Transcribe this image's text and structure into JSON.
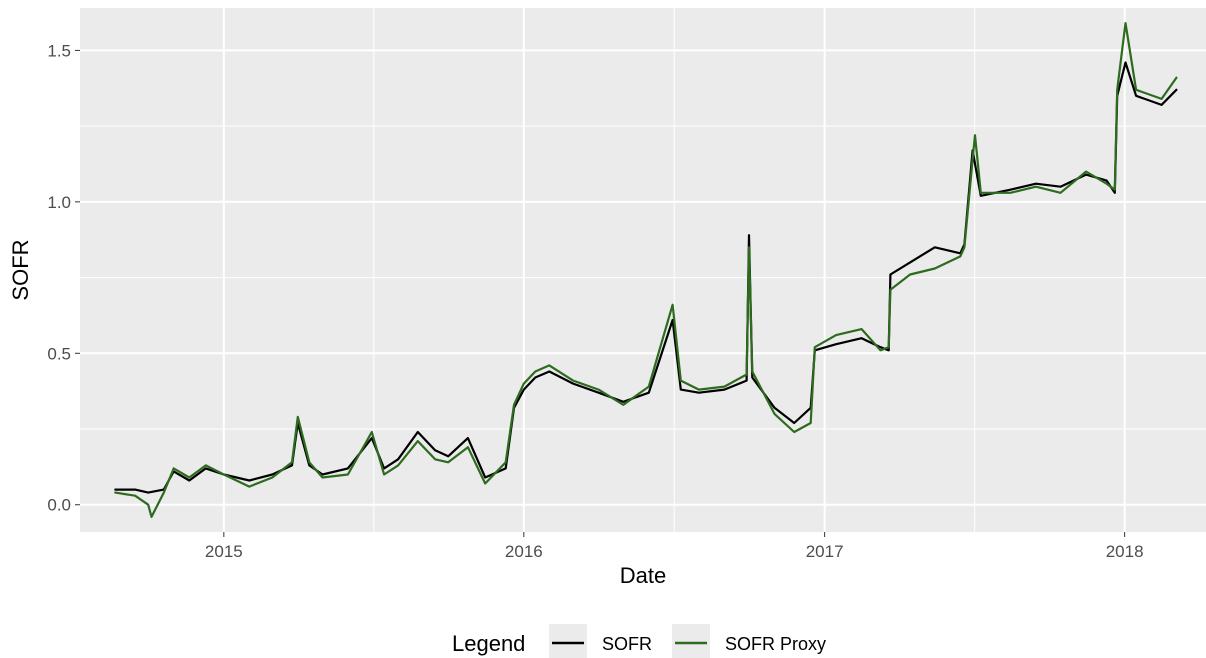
{
  "chart_data": {
    "type": "line",
    "xlabel": "Date",
    "ylabel": "SOFR",
    "x_domain": [
      "2014-07-10",
      "2018-04-10"
    ],
    "ylim": [
      -0.09,
      1.64
    ],
    "x_ticks": [
      "2015-01-01",
      "2016-01-01",
      "2017-01-01",
      "2018-01-01"
    ],
    "x_tick_labels": [
      "2015",
      "2016",
      "2017",
      "2018"
    ],
    "y_ticks": [
      0.0,
      0.5,
      1.0,
      1.5
    ],
    "y_tick_labels": [
      "0.0",
      "0.5",
      "1.0",
      "1.5"
    ],
    "grid": true,
    "legend": {
      "title": "Legend",
      "position": "bottom"
    },
    "colors": {
      "panel": "#ebebeb",
      "grid": "#ffffff",
      "sofr": "#000000",
      "proxy": "#2d6b1f"
    },
    "series": [
      {
        "name": "SOFR",
        "color": "#000000",
        "points": [
          [
            "2014-08-22",
            0.05
          ],
          [
            "2014-09-15",
            0.05
          ],
          [
            "2014-10-01",
            0.04
          ],
          [
            "2014-10-20",
            0.05
          ],
          [
            "2014-11-01",
            0.11
          ],
          [
            "2014-11-20",
            0.08
          ],
          [
            "2014-12-10",
            0.12
          ],
          [
            "2015-01-01",
            0.1
          ],
          [
            "2015-02-01",
            0.08
          ],
          [
            "2015-03-01",
            0.1
          ],
          [
            "2015-03-25",
            0.13
          ],
          [
            "2015-04-01",
            0.27
          ],
          [
            "2015-04-15",
            0.13
          ],
          [
            "2015-05-01",
            0.1
          ],
          [
            "2015-06-01",
            0.12
          ],
          [
            "2015-06-30",
            0.22
          ],
          [
            "2015-07-15",
            0.12
          ],
          [
            "2015-08-01",
            0.15
          ],
          [
            "2015-08-25",
            0.24
          ],
          [
            "2015-09-15",
            0.18
          ],
          [
            "2015-10-01",
            0.16
          ],
          [
            "2015-10-25",
            0.22
          ],
          [
            "2015-11-15",
            0.09
          ],
          [
            "2015-12-10",
            0.12
          ],
          [
            "2015-12-20",
            0.32
          ],
          [
            "2016-01-01",
            0.38
          ],
          [
            "2016-01-15",
            0.42
          ],
          [
            "2016-02-01",
            0.44
          ],
          [
            "2016-03-01",
            0.4
          ],
          [
            "2016-04-01",
            0.37
          ],
          [
            "2016-05-01",
            0.34
          ],
          [
            "2016-06-01",
            0.37
          ],
          [
            "2016-06-30",
            0.61
          ],
          [
            "2016-07-10",
            0.38
          ],
          [
            "2016-08-01",
            0.37
          ],
          [
            "2016-09-01",
            0.38
          ],
          [
            "2016-09-28",
            0.41
          ],
          [
            "2016-10-01",
            0.89
          ],
          [
            "2016-10-05",
            0.42
          ],
          [
            "2016-11-01",
            0.32
          ],
          [
            "2016-11-25",
            0.27
          ],
          [
            "2016-12-15",
            0.32
          ],
          [
            "2016-12-20",
            0.51
          ],
          [
            "2017-01-15",
            0.53
          ],
          [
            "2017-02-15",
            0.55
          ],
          [
            "2017-03-10",
            0.52
          ],
          [
            "2017-03-20",
            0.51
          ],
          [
            "2017-03-22",
            0.76
          ],
          [
            "2017-04-15",
            0.8
          ],
          [
            "2017-05-15",
            0.85
          ],
          [
            "2017-06-15",
            0.83
          ],
          [
            "2017-06-20",
            0.86
          ],
          [
            "2017-06-30",
            1.17
          ],
          [
            "2017-07-10",
            1.02
          ],
          [
            "2017-08-15",
            1.04
          ],
          [
            "2017-09-15",
            1.06
          ],
          [
            "2017-10-15",
            1.05
          ],
          [
            "2017-11-15",
            1.09
          ],
          [
            "2017-12-10",
            1.07
          ],
          [
            "2017-12-20",
            1.03
          ],
          [
            "2017-12-23",
            1.35
          ],
          [
            "2018-01-02",
            1.46
          ],
          [
            "2018-01-15",
            1.35
          ],
          [
            "2018-02-15",
            1.32
          ],
          [
            "2018-03-05",
            1.37
          ]
        ]
      },
      {
        "name": "SOFR Proxy",
        "color": "#2d6b1f",
        "points": [
          [
            "2014-08-22",
            0.04
          ],
          [
            "2014-09-15",
            0.03
          ],
          [
            "2014-10-01",
            0.0
          ],
          [
            "2014-10-05",
            -0.04
          ],
          [
            "2014-10-20",
            0.04
          ],
          [
            "2014-11-01",
            0.12
          ],
          [
            "2014-11-20",
            0.09
          ],
          [
            "2014-12-10",
            0.13
          ],
          [
            "2015-01-01",
            0.1
          ],
          [
            "2015-02-01",
            0.06
          ],
          [
            "2015-03-01",
            0.09
          ],
          [
            "2015-03-25",
            0.14
          ],
          [
            "2015-04-01",
            0.29
          ],
          [
            "2015-04-15",
            0.14
          ],
          [
            "2015-05-01",
            0.09
          ],
          [
            "2015-06-01",
            0.1
          ],
          [
            "2015-06-30",
            0.24
          ],
          [
            "2015-07-15",
            0.1
          ],
          [
            "2015-08-01",
            0.13
          ],
          [
            "2015-08-25",
            0.21
          ],
          [
            "2015-09-15",
            0.15
          ],
          [
            "2015-10-01",
            0.14
          ],
          [
            "2015-10-25",
            0.19
          ],
          [
            "2015-11-15",
            0.07
          ],
          [
            "2015-12-10",
            0.14
          ],
          [
            "2015-12-20",
            0.33
          ],
          [
            "2016-01-01",
            0.4
          ],
          [
            "2016-01-15",
            0.44
          ],
          [
            "2016-02-01",
            0.46
          ],
          [
            "2016-03-01",
            0.41
          ],
          [
            "2016-04-01",
            0.38
          ],
          [
            "2016-05-01",
            0.33
          ],
          [
            "2016-06-01",
            0.39
          ],
          [
            "2016-06-30",
            0.66
          ],
          [
            "2016-07-10",
            0.41
          ],
          [
            "2016-08-01",
            0.38
          ],
          [
            "2016-09-01",
            0.39
          ],
          [
            "2016-09-28",
            0.43
          ],
          [
            "2016-10-01",
            0.85
          ],
          [
            "2016-10-05",
            0.44
          ],
          [
            "2016-11-01",
            0.3
          ],
          [
            "2016-11-25",
            0.24
          ],
          [
            "2016-12-15",
            0.27
          ],
          [
            "2016-12-20",
            0.52
          ],
          [
            "2017-01-15",
            0.56
          ],
          [
            "2017-02-15",
            0.58
          ],
          [
            "2017-03-10",
            0.51
          ],
          [
            "2017-03-20",
            0.52
          ],
          [
            "2017-03-22",
            0.71
          ],
          [
            "2017-04-15",
            0.76
          ],
          [
            "2017-05-15",
            0.78
          ],
          [
            "2017-06-15",
            0.82
          ],
          [
            "2017-06-20",
            0.85
          ],
          [
            "2017-06-30",
            1.14
          ],
          [
            "2017-07-03",
            1.22
          ],
          [
            "2017-07-10",
            1.03
          ],
          [
            "2017-08-15",
            1.03
          ],
          [
            "2017-09-15",
            1.05
          ],
          [
            "2017-10-15",
            1.03
          ],
          [
            "2017-11-15",
            1.1
          ],
          [
            "2017-12-10",
            1.06
          ],
          [
            "2017-12-20",
            1.04
          ],
          [
            "2017-12-23",
            1.37
          ],
          [
            "2018-01-02",
            1.59
          ],
          [
            "2018-01-15",
            1.37
          ],
          [
            "2018-02-15",
            1.34
          ],
          [
            "2018-03-05",
            1.41
          ]
        ]
      }
    ]
  }
}
